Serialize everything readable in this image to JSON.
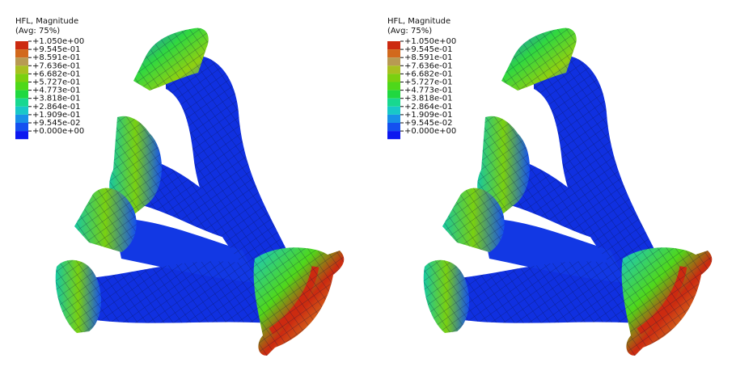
{
  "panels": [
    {
      "legend": {
        "title": "HFL, Magnitude",
        "subtitle": "(Avg: 75%)",
        "labels": [
          "+1.050e+00",
          "+9.545e-01",
          "+8.591e-01",
          "+7.636e-01",
          "+6.682e-01",
          "+5.727e-01",
          "+4.773e-01",
          "+3.818e-01",
          "+2.864e-01",
          "+1.909e-01",
          "+9.545e-02",
          "+0.000e+00"
        ],
        "colors": [
          "#cc2a10",
          "#d2691c",
          "#b89a52",
          "#a8c020",
          "#7ad010",
          "#4ed81a",
          "#20d840",
          "#18d890",
          "#18c8c8",
          "#1890e8",
          "#1450f0",
          "#0c18f0"
        ]
      }
    },
    {
      "legend": {
        "title": "HFL, Magnitude",
        "subtitle": "(Avg: 75%)",
        "labels": [
          "+1.050e+00",
          "+9.545e-01",
          "+8.591e-01",
          "+7.636e-01",
          "+6.682e-01",
          "+5.727e-01",
          "+4.773e-01",
          "+3.818e-01",
          "+2.864e-01",
          "+1.909e-01",
          "+9.545e-02",
          "+0.000e+00"
        ],
        "colors": [
          "#cc2a10",
          "#d2691c",
          "#b89a52",
          "#a8c020",
          "#7ad010",
          "#4ed81a",
          "#20d840",
          "#18d890",
          "#18c8c8",
          "#1890e8",
          "#1450f0",
          "#0c18f0"
        ]
      }
    }
  ]
}
